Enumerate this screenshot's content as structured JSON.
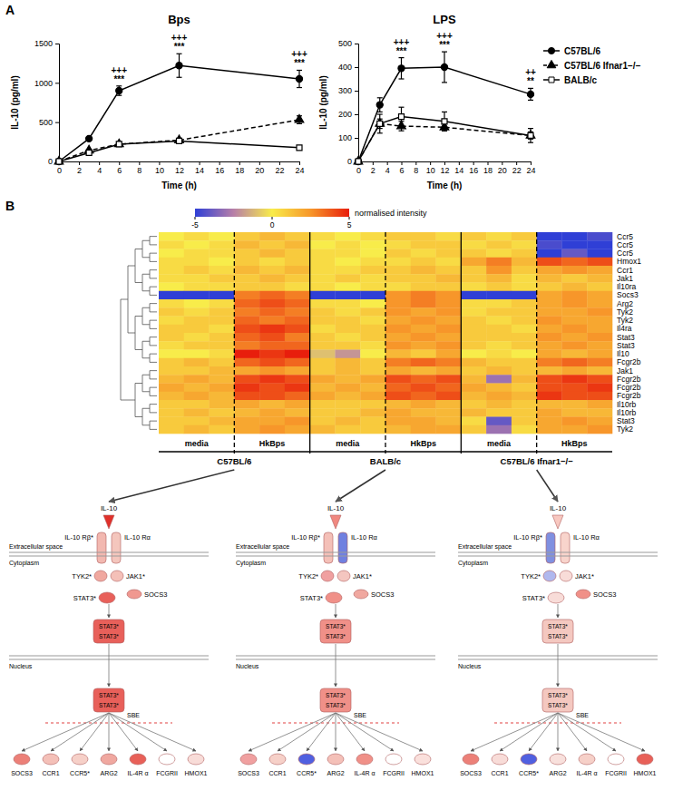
{
  "panel_labels": [
    "A",
    "B"
  ],
  "chart_data": [
    {
      "type": "line",
      "title": "Bps",
      "x_label": "Time (h)",
      "y_label": "IL-10 (pg/ml)",
      "x": [
        0,
        3,
        6,
        12,
        24
      ],
      "xlim": [
        0,
        24
      ],
      "xticks": [
        0,
        2,
        4,
        6,
        8,
        10,
        12,
        14,
        16,
        18,
        20,
        22,
        24
      ],
      "ylim": [
        0,
        1500
      ],
      "yticks": [
        0,
        500,
        1000,
        1500
      ],
      "series": [
        {
          "name": "C57BL/6",
          "color": "#000000",
          "marker": "circle",
          "line_style": "solid",
          "values": [
            0,
            290,
            900,
            1220,
            1050
          ],
          "errors": [
            0,
            20,
            60,
            150,
            110
          ]
        },
        {
          "name": "C57BL/6 Ifnar1−/−",
          "color": "#000000",
          "marker": "triangle",
          "line_style": "dashed",
          "values": [
            0,
            140,
            220,
            270,
            530
          ],
          "errors": [
            0,
            15,
            20,
            20,
            50
          ]
        },
        {
          "name": "BALB/c",
          "color": "#000000",
          "marker": "square-open",
          "line_style": "solid",
          "values": [
            0,
            110,
            220,
            260,
            175
          ],
          "errors": [
            0,
            10,
            15,
            20,
            10
          ]
        }
      ],
      "annotations": [
        {
          "x": 6,
          "labels": [
            "+++",
            "***"
          ]
        },
        {
          "x": 12,
          "labels": [
            "+++",
            "***"
          ]
        },
        {
          "x": 24,
          "labels": [
            "+++",
            "***"
          ]
        }
      ]
    },
    {
      "type": "line",
      "title": "LPS",
      "x_label": "Time (h)",
      "y_label": "IL-10 (pg/ml)",
      "x": [
        0,
        3,
        6,
        12,
        24
      ],
      "xlim": [
        0,
        24
      ],
      "xticks": [
        0,
        2,
        4,
        6,
        8,
        10,
        12,
        14,
        16,
        18,
        20,
        22,
        24
      ],
      "ylim": [
        0,
        500
      ],
      "yticks": [
        0,
        100,
        200,
        300,
        400,
        500
      ],
      "legend": "right",
      "series": [
        {
          "name": "C57BL/6",
          "color": "#000000",
          "marker": "circle",
          "line_style": "solid",
          "values": [
            0,
            240,
            395,
            400,
            285
          ],
          "errors": [
            0,
            30,
            45,
            65,
            25
          ]
        },
        {
          "name": "C57BL/6 Ifnar1−/−",
          "color": "#000000",
          "marker": "triangle",
          "line_style": "dashed",
          "values": [
            0,
            160,
            150,
            145,
            110
          ],
          "errors": [
            0,
            20,
            20,
            15,
            15
          ]
        },
        {
          "name": "BALB/c",
          "color": "#000000",
          "marker": "square-open",
          "line_style": "solid",
          "values": [
            0,
            160,
            190,
            170,
            110
          ],
          "errors": [
            0,
            40,
            40,
            40,
            30
          ]
        }
      ],
      "annotations": [
        {
          "x": 6,
          "labels": [
            "+++",
            "***"
          ]
        },
        {
          "x": 12,
          "labels": [
            "+++",
            "***"
          ]
        },
        {
          "x": 24,
          "labels": [
            "++",
            "**"
          ]
        }
      ]
    },
    {
      "type": "heatmap",
      "rows": [
        "Ccr5",
        "Ccr5",
        "Ccr5",
        "Hmox1",
        "Ccr1",
        "Jak1",
        "Il10ra",
        "Socs3",
        "Arg2",
        "Tyk2",
        "Tyk2",
        "Il4ra",
        "Stat3",
        "Stat3",
        "Il10",
        "Fcgr2b",
        "Jak1",
        "Fcgr2b",
        "Fcgr2b",
        "Fcgr2b",
        "Il10rb",
        "Il10rb",
        "Stat3",
        "Tyk2"
      ],
      "conditions": [
        "media",
        "HkBps",
        "media",
        "HkBps",
        "media",
        "HkBps"
      ],
      "strains": [
        "C57BL/6",
        "BALB/c",
        "C57BL/6 Ifnar1−/−"
      ],
      "colorbar": {
        "range": [
          -5,
          5
        ],
        "ticks": [
          -5,
          0,
          5
        ],
        "label": "normalised intensity"
      },
      "values": [
        [
          0,
          0.5,
          0,
          1,
          1.5,
          1,
          0.5,
          0,
          0.5,
          1,
          1,
          0.5,
          1,
          0.5,
          1,
          -5,
          -5,
          -4.5
        ],
        [
          0.5,
          0,
          0.5,
          1.5,
          1,
          1.5,
          0,
          0.5,
          0,
          0.5,
          1,
          1,
          0.5,
          1,
          0.5,
          -4.5,
          -5,
          -5
        ],
        [
          0,
          0.5,
          0.5,
          1,
          1.5,
          1,
          0.5,
          0.5,
          0,
          1,
          0.5,
          1,
          1,
          0.5,
          1,
          -5,
          -4,
          -5
        ],
        [
          0.5,
          0.5,
          0,
          1,
          0.5,
          1,
          0.5,
          0,
          0.5,
          0.5,
          1,
          0.5,
          2,
          3,
          1.5,
          4,
          3.5,
          4
        ],
        [
          0.5,
          1,
          0.5,
          1.5,
          1,
          1.5,
          0.5,
          0.5,
          1,
          1,
          1.5,
          1,
          1,
          2.5,
          1,
          2,
          2.5,
          2
        ],
        [
          0.5,
          0.5,
          1,
          1,
          1.5,
          1,
          0.5,
          1,
          0.5,
          1,
          1,
          1.5,
          1,
          1.5,
          0.5,
          1.5,
          1,
          1.5
        ],
        [
          0,
          0.5,
          0.5,
          1,
          1,
          0.5,
          0.5,
          0,
          0.5,
          0.5,
          1,
          1,
          0.5,
          1,
          0.5,
          1,
          1.5,
          1
        ],
        [
          -5,
          -5,
          -5,
          3,
          3.5,
          3,
          -5,
          -5,
          -5,
          2.5,
          3,
          2.5,
          -5,
          -5,
          -5,
          2,
          2.5,
          2
        ],
        [
          0.5,
          0,
          0.5,
          3.5,
          4,
          3.5,
          0.5,
          0.5,
          0,
          2.5,
          3,
          2.5,
          0.5,
          0.5,
          1,
          2,
          2.5,
          2
        ],
        [
          1,
          0.5,
          1,
          3,
          3.5,
          3,
          1,
          0.5,
          1,
          2.5,
          2,
          2.5,
          0.5,
          1,
          1,
          2,
          2,
          2.5
        ],
        [
          0.5,
          1,
          1,
          3.5,
          3,
          3.5,
          1,
          1,
          0.5,
          2,
          2.5,
          2,
          1,
          0.5,
          1,
          2.5,
          2,
          2
        ],
        [
          1,
          1,
          0.5,
          4,
          4.5,
          4,
          0.5,
          1,
          1,
          2.5,
          2,
          2.5,
          1,
          1,
          0.5,
          2,
          2.5,
          2
        ],
        [
          1,
          0.5,
          1,
          3.5,
          4,
          3,
          1,
          0.5,
          1,
          2,
          2.5,
          2,
          1,
          1,
          1,
          2.5,
          2,
          2.5
        ],
        [
          0.5,
          1,
          1,
          3,
          3.5,
          3.5,
          1,
          1,
          0.5,
          2.5,
          2,
          2.5,
          1,
          0.5,
          1,
          2,
          2.5,
          2
        ],
        [
          0,
          0,
          0.5,
          5,
          4.5,
          5,
          -1,
          -2,
          0,
          1.5,
          1,
          2,
          0,
          0.5,
          0,
          2,
          1.5,
          2
        ],
        [
          1,
          1.5,
          1,
          3.5,
          4,
          3.5,
          1,
          1.5,
          1,
          3,
          3.5,
          3,
          1.5,
          1,
          1,
          3,
          3.5,
          3
        ],
        [
          1,
          1,
          1.5,
          2,
          2.5,
          2,
          1,
          1.5,
          1,
          2,
          1.5,
          2,
          1,
          1.5,
          1,
          1.5,
          2,
          1.5
        ],
        [
          1.5,
          2,
          1.5,
          4,
          4.5,
          4,
          2,
          1.5,
          2,
          4,
          3.5,
          4,
          1.5,
          -3,
          1.5,
          4,
          4.5,
          4
        ],
        [
          2,
          1.5,
          2,
          4.5,
          4,
          4.5,
          1.5,
          2,
          1.5,
          3.5,
          4,
          3.5,
          2,
          1.5,
          1,
          4,
          4,
          4.5
        ],
        [
          1.5,
          2,
          1.5,
          4,
          4,
          3.5,
          2,
          1.5,
          2,
          4,
          3.5,
          4,
          1.5,
          2,
          1.5,
          4.5,
          4,
          4
        ],
        [
          1,
          1,
          1.5,
          2,
          1.5,
          2,
          1,
          1,
          1,
          1.5,
          2,
          1.5,
          1,
          1.5,
          1,
          1.5,
          1.5,
          2
        ],
        [
          1,
          1.5,
          1,
          1.5,
          2,
          1.5,
          1,
          1,
          1.5,
          2,
          1.5,
          1.5,
          1.5,
          1,
          1,
          2,
          1.5,
          1.5
        ],
        [
          1,
          1,
          1.5,
          2,
          2,
          2.5,
          1,
          1.5,
          1,
          2,
          2,
          1.5,
          0.5,
          -4,
          1,
          2,
          2.5,
          2
        ],
        [
          1,
          1.5,
          1,
          2,
          2.5,
          2,
          1.5,
          1,
          1,
          1.5,
          2,
          2,
          1,
          -3,
          0.5,
          2,
          2,
          2.5
        ]
      ]
    }
  ],
  "pathway": {
    "compartments": {
      "extracellular": "Extracellular space",
      "cytoplasm": "Cytoplasm",
      "nucleus": "Nucleus"
    },
    "ligand": "IL-10",
    "receptors": [
      "IL-10 Rβ*",
      "IL-10 Rα"
    ],
    "kinases": [
      "TYK2*",
      "JAK1*"
    ],
    "inhibitor": "SOCS3",
    "factor": "STAT3*",
    "dimer": [
      "STAT3*",
      "STAT3*"
    ],
    "element": "SBE",
    "targets": [
      "SOCS3",
      "CCR1",
      "CCR5*",
      "ARG2",
      "IL-4R α",
      "FCGRII",
      "HMOX1"
    ],
    "diagrams": [
      {
        "colors": {
          "ligand": "#e0302a",
          "receptors": [
            "#f2b8b0",
            "#f4c6bd"
          ],
          "kinases": [
            "#f0a8a0",
            "#f4c0b8"
          ],
          "inhibitor": "#f09890",
          "factor": "#e8605a",
          "dimer": "#e8605a",
          "nuclear_dimer": "#e8605a",
          "targets": [
            "#ec8078",
            "#f4c0b8",
            "#f6d0c8",
            "#f0a8a0",
            "#e86058",
            "#ffffff",
            "#f8dcd8"
          ]
        }
      },
      {
        "colors": {
          "ligand": "#f08880",
          "receptors": [
            "#f4c0b8",
            "#7080e0"
          ],
          "kinases": [
            "#f0a0a0",
            "#f4c6c0"
          ],
          "inhibitor": "#f0a8a0",
          "factor": "#f09088",
          "dimer": "#f09088",
          "nuclear_dimer": "#f09088",
          "targets": [
            "#f0a0a0",
            "#f6d0c8",
            "#5060e0",
            "#f4c0b8",
            "#f09088",
            "#ffffff",
            "#fae0dc"
          ]
        }
      },
      {
        "colors": {
          "ligand": "#f8c8c0",
          "receptors": [
            "#8090e0",
            "#f8d4cc"
          ],
          "kinases": [
            "#b0b8ee",
            "#f8dcd8"
          ],
          "inhibitor": "#f09088",
          "factor": "#f8dcd8",
          "dimer": "#f4c8c0",
          "nuclear_dimer": "#f4c8c0",
          "targets": [
            "#ec8078",
            "#f8dcd8",
            "#5060e0",
            "#f8e0dc",
            "#f6d0c8",
            "#ffffff",
            "#e86058"
          ]
        }
      }
    ]
  }
}
